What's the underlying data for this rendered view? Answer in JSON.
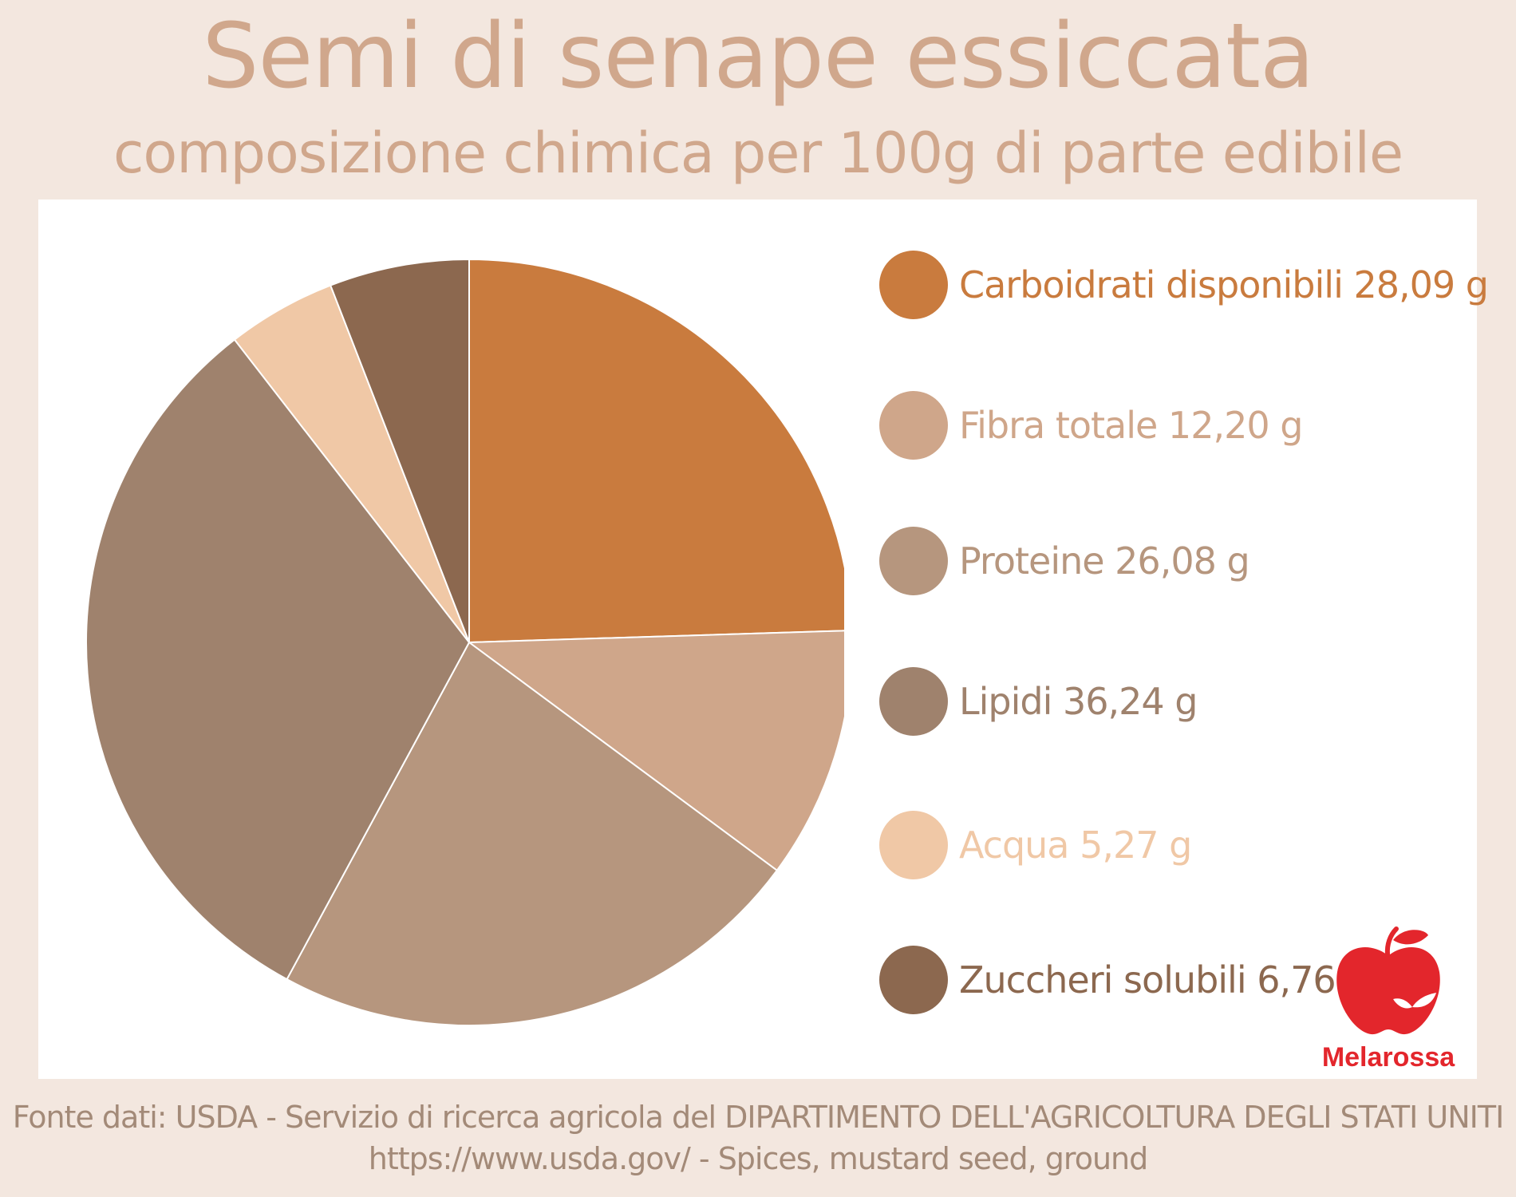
{
  "header": {
    "title": "Semi di senape essiccata",
    "subtitle": "composizione chimica per 100g di parte edibile"
  },
  "chart_data": {
    "type": "pie",
    "categories": [
      "Carboidrati disponibili",
      "Fibra totale",
      "Proteine",
      "Lipidi",
      "Acqua",
      "Zuccheri solubili"
    ],
    "values": [
      28.09,
      12.2,
      26.08,
      36.24,
      5.27,
      6.76
    ],
    "labels": [
      "Carboidrati disponibili 28,09 g",
      "Fibra totale 12,20 g",
      "Proteine 26,08 g",
      "Lipidi 36,24 g",
      "Acqua  5,27 g",
      "Zuccheri solubili 6,76 g"
    ],
    "colors": [
      "#c97b3e",
      "#cfa68a",
      "#b6967e",
      "#9f826d",
      "#f0c8a6",
      "#8c684f"
    ],
    "legend_position": "right"
  },
  "logo": {
    "text": "Melarossa",
    "icon": "apple-icon",
    "color": "#e3262c"
  },
  "footer": {
    "source_line": "Fonte dati: USDA - Servizio di ricerca agricola del DIPARTIMENTO DELL'AGRICOLTURA DEGLI STATI UNITI",
    "url_line": "https://www.usda.gov/ - Spices, mustard seed, ground"
  }
}
